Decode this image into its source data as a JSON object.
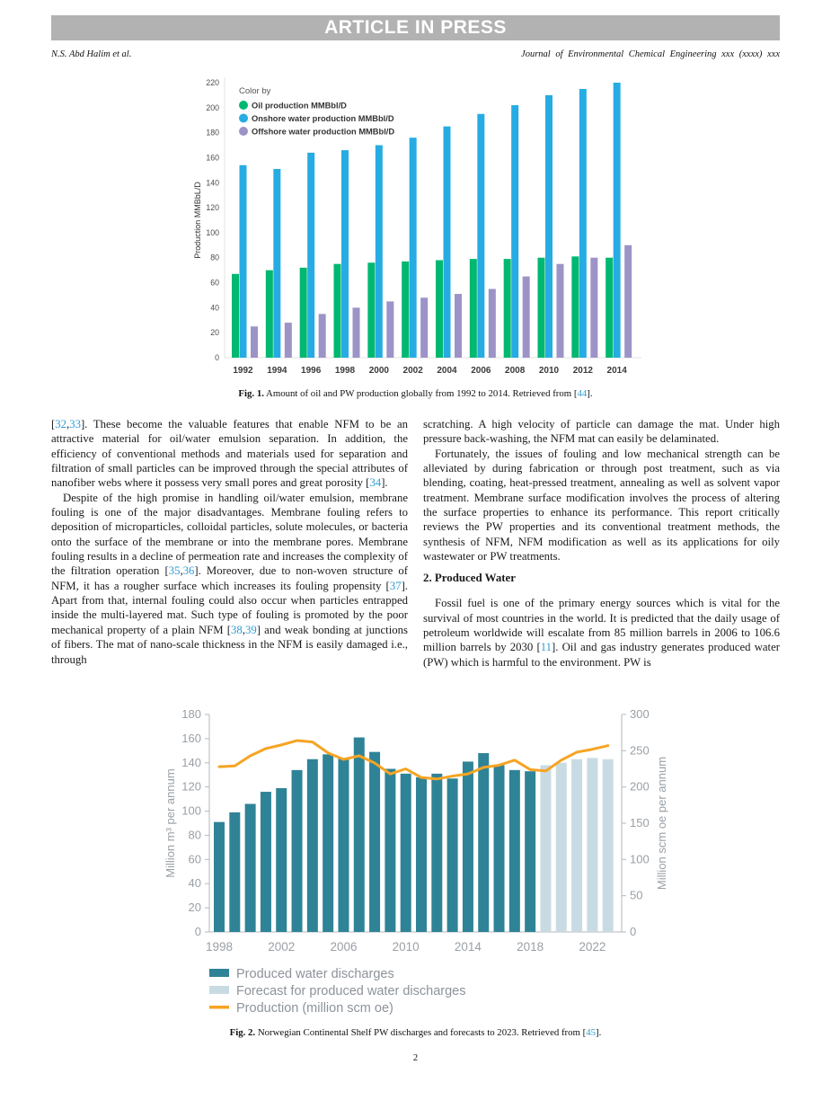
{
  "header": {
    "banner": "ARTICLE IN PRESS",
    "authors": "N.S. Abd Halim et al.",
    "journal": "Journal of Environmental Chemical Engineering xxx (xxxx) xxx"
  },
  "fig1": {
    "caption": {
      "label": "Fig. 1.",
      "segs": [
        {
          "t": " Amount of oil and PW production globally from 1992 to 2014. Retrieved from ["
        },
        {
          "t": "44",
          "c": true
        },
        {
          "t": "]."
        }
      ]
    }
  },
  "fig2": {
    "caption": {
      "label": "Fig. 2.",
      "segs": [
        {
          "t": " Norwegian Continental Shelf PW discharges and forecasts to 2023. Retrieved from ["
        },
        {
          "t": "45",
          "c": true
        },
        {
          "t": "]."
        }
      ]
    }
  },
  "body": {
    "left": {
      "p1": [
        {
          "t": "["
        },
        {
          "t": "32",
          "c": true
        },
        {
          "t": ","
        },
        {
          "t": "33",
          "c": true
        },
        {
          "t": "]. These become the valuable features that enable NFM to be an attractive material for oil/water emulsion separation. In addition, the efficiency of conventional methods and materials used for separation and filtration of small particles can be improved through the special attributes of nanofiber webs where it possess very small pores and great porosity ["
        },
        {
          "t": "34",
          "c": true
        },
        {
          "t": "]."
        }
      ],
      "p2": [
        {
          "t": "Despite of the high promise in handling oil/water emulsion, membrane fouling is one of the major disadvantages. Membrane fouling refers to deposition of microparticles, colloidal particles, solute molecules, or bacteria onto the surface of the membrane or into the membrane pores. Membrane fouling results in a decline of permeation rate and increases the complexity of the filtration operation ["
        },
        {
          "t": "35",
          "c": true
        },
        {
          "t": ","
        },
        {
          "t": "36",
          "c": true
        },
        {
          "t": "]. Moreover, due to non-woven structure of NFM, it has a rougher surface which increases its fouling propensity ["
        },
        {
          "t": "37",
          "c": true
        },
        {
          "t": "]. Apart from that, internal fouling could also occur when particles entrapped inside the multi-layered mat. Such type of fouling is promoted by the poor mechanical property of a plain NFM ["
        },
        {
          "t": "38",
          "c": true
        },
        {
          "t": ","
        },
        {
          "t": "39",
          "c": true
        },
        {
          "t": "] and weak bonding at junctions of fibers. The mat of nano-scale thickness in the NFM is easily damaged i.e., through"
        }
      ]
    },
    "right": {
      "p1": [
        {
          "t": "scratching. A high velocity of particle can damage the mat. Under high pressure back-washing, the NFM mat can easily be delaminated."
        }
      ],
      "p2": [
        {
          "t": "Fortunately, the issues of fouling and low mechanical strength can be alleviated by during fabrication or through post treatment, such as via blending, coating, heat-pressed treatment, annealing as well as solvent vapor treatment. Membrane surface modification involves the process of altering the surface properties to enhance its performance. This report critically reviews the PW properties and its conventional treatment methods, the synthesis of NFM, NFM modification as well as its applications for oily wastewater or PW treatments."
        }
      ],
      "heading": "2. Produced Water",
      "p3": [
        {
          "t": "Fossil fuel is one of the primary energy sources which is vital for the survival of most countries in the world. It is predicted that the daily usage of petroleum worldwide will escalate from 85 million barrels in 2006 to 106.6 million barrels by 2030 ["
        },
        {
          "t": "11",
          "c": true
        },
        {
          "t": "]. Oil and gas industry generates produced water (PW) which is harmful to the environment. PW is"
        }
      ]
    }
  },
  "footer": {
    "page_number": "2"
  },
  "chart_data": [
    {
      "type": "bar",
      "legend_title": "Color by",
      "categories": [
        "1992",
        "1994",
        "1996",
        "1998",
        "2000",
        "2002",
        "2004",
        "2006",
        "2008",
        "2010",
        "2012",
        "2014"
      ],
      "series": [
        {
          "name": "Oil production MMBbl/D",
          "color": "#00b871",
          "values": [
            67,
            70,
            72,
            75,
            76,
            77,
            78,
            79,
            79,
            80,
            81,
            80
          ]
        },
        {
          "name": "Onshore water production MMBbl/D",
          "color": "#26ace3",
          "values": [
            154,
            151,
            164,
            166,
            170,
            176,
            185,
            195,
            202,
            210,
            215,
            220
          ]
        },
        {
          "name": "Offshore water production MMBbl/D",
          "color": "#9c93c7",
          "values": [
            25,
            28,
            35,
            40,
            45,
            48,
            51,
            55,
            65,
            75,
            80,
            90
          ]
        }
      ],
      "ylabel": "Production MMBbL/D",
      "ylim": [
        0,
        220
      ],
      "ytick_step": 20,
      "grid": false,
      "legend_position": "top-left"
    },
    {
      "type": "bar+line",
      "x": [
        1998,
        1999,
        2000,
        2001,
        2002,
        2003,
        2004,
        2005,
        2006,
        2007,
        2008,
        2009,
        2010,
        2011,
        2012,
        2013,
        2014,
        2015,
        2016,
        2017,
        2018,
        2019,
        2020,
        2021,
        2022,
        2023
      ],
      "series": [
        {
          "name": "Produced water discharges",
          "type": "bar",
          "axis": "left",
          "color": "#2f8396",
          "values": [
            91,
            99,
            106,
            116,
            119,
            134,
            143,
            147,
            144,
            161,
            149,
            135,
            131,
            128,
            131,
            127,
            141,
            148,
            138,
            134,
            133,
            null,
            null,
            null,
            null,
            null
          ]
        },
        {
          "name": "Forecast for produced water discharges",
          "type": "bar",
          "axis": "left",
          "color": "#c9dbe2",
          "values": [
            null,
            null,
            null,
            null,
            null,
            null,
            null,
            null,
            null,
            null,
            null,
            null,
            null,
            null,
            null,
            null,
            null,
            null,
            null,
            null,
            null,
            138,
            140,
            143,
            144,
            143
          ]
        },
        {
          "name": "Production (million scm oe)",
          "type": "line",
          "axis": "right",
          "color": "#f6a423",
          "values": [
            228,
            229,
            243,
            253,
            258,
            264,
            262,
            247,
            238,
            243,
            233,
            218,
            225,
            213,
            211,
            215,
            218,
            227,
            230,
            237,
            224,
            222,
            237,
            248,
            252,
            257
          ]
        }
      ],
      "ylabel_left": "Million m³ per annum",
      "ylabel_right": "Million scm oe per annum",
      "ylim_left": [
        0,
        180
      ],
      "ytick_step_left": 20,
      "ylim_right": [
        0,
        300
      ],
      "ytick_step_right": 50,
      "xticks": [
        1998,
        2002,
        2006,
        2010,
        2014,
        2018,
        2022
      ],
      "grid": false,
      "legend_position": "bottom-left"
    }
  ]
}
